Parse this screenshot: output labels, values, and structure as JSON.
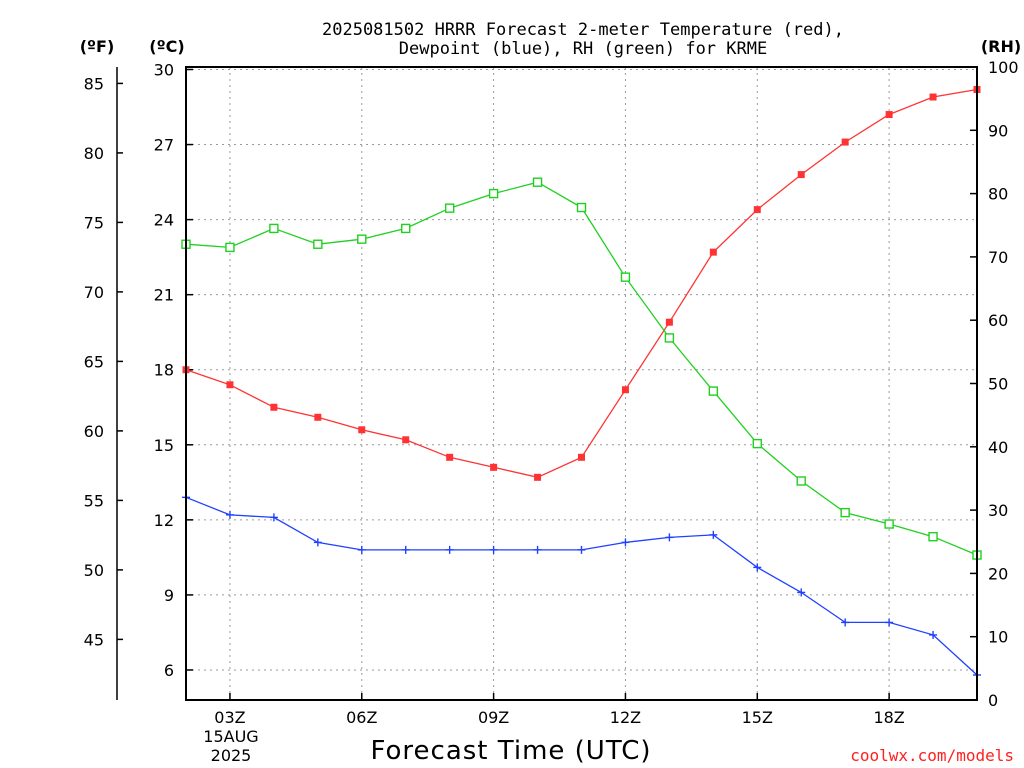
{
  "chart_data": {
    "type": "line",
    "title_lines": [
      "2025081502 HRRR Forecast 2-meter Temperature (red),",
      "Dewpoint (blue), RH (green) for KRME"
    ],
    "units": {
      "fahrenheit": "(ºF)",
      "celsius": "(ºC)",
      "rh": "(RH)"
    },
    "xlabel": "Forecast Time (UTC)",
    "date_label": [
      "15AUG",
      "2025"
    ],
    "credit": "coolwx.com/models",
    "x_hours": [
      2,
      3,
      4,
      5,
      6,
      7,
      8,
      9,
      10,
      11,
      12,
      13,
      14,
      15,
      16,
      17,
      18,
      19,
      20
    ],
    "xlim": [
      2,
      20
    ],
    "x_ticks": [
      {
        "hour": 3,
        "label": "03Z"
      },
      {
        "hour": 6,
        "label": "06Z"
      },
      {
        "hour": 9,
        "label": "09Z"
      },
      {
        "hour": 12,
        "label": "12Z"
      },
      {
        "hour": 15,
        "label": "15Z"
      },
      {
        "hour": 18,
        "label": "18Z"
      }
    ],
    "celsius_axis": {
      "ylim": [
        4.8,
        30.1
      ],
      "ticks": [
        6,
        9,
        12,
        15,
        18,
        21,
        24,
        27,
        30
      ]
    },
    "fahrenheit_axis": {
      "ticks": [
        45,
        50,
        55,
        60,
        65,
        70,
        75,
        80,
        85
      ]
    },
    "rh_axis": {
      "ylim": [
        0,
        100
      ],
      "ticks": [
        0,
        10,
        20,
        30,
        40,
        50,
        60,
        70,
        80,
        90,
        100
      ]
    },
    "series": [
      {
        "name": "Temperature (red)",
        "axis": "celsius",
        "color": "#ff3333",
        "marker": "filled-square",
        "values": [
          18.0,
          17.4,
          16.5,
          16.1,
          15.6,
          15.2,
          14.5,
          14.1,
          13.7,
          14.5,
          17.2,
          19.9,
          22.7,
          24.4,
          25.8,
          27.1,
          28.2,
          28.9,
          29.2
        ]
      },
      {
        "name": "Dewpoint (blue)",
        "axis": "celsius",
        "color": "#2040ff",
        "marker": "plus",
        "values": [
          12.9,
          12.2,
          12.1,
          11.1,
          10.8,
          10.8,
          10.8,
          10.8,
          10.8,
          10.8,
          11.1,
          11.3,
          11.4,
          10.1,
          9.1,
          7.9,
          7.9,
          7.4,
          5.8
        ]
      },
      {
        "name": "RH (green)",
        "axis": "rh",
        "color": "#20d020",
        "marker": "open-square",
        "values": [
          72,
          71.5,
          74.5,
          72,
          72.8,
          74.5,
          77.7,
          80,
          81.8,
          77.8,
          66.8,
          57.2,
          48.8,
          40.5,
          34.6,
          29.6,
          27.8,
          25.8,
          22.9
        ]
      }
    ]
  }
}
